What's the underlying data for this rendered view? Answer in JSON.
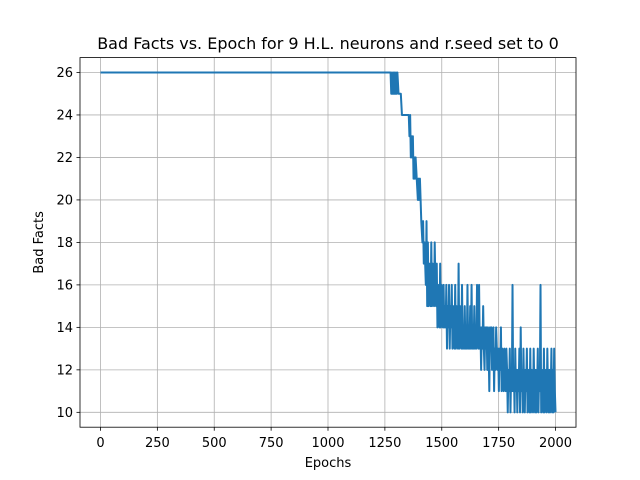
{
  "chart_data": {
    "type": "line",
    "title": "Bad Facts vs. Epoch for 9 H.L. neurons and r.seed set to 0",
    "xlabel": "Epochs",
    "ylabel": "Bad Facts",
    "xlim": [
      -90,
      2090
    ],
    "ylim": [
      9.3,
      26.7
    ],
    "xticks": [
      0,
      250,
      500,
      750,
      1000,
      1250,
      1500,
      1750,
      2000
    ],
    "yticks": [
      10,
      12,
      14,
      16,
      18,
      20,
      22,
      24,
      26
    ],
    "grid": true,
    "series": [
      {
        "color": "#1f77b4",
        "points": [
          [
            0,
            26
          ],
          [
            1275,
            26
          ],
          [
            1278,
            25
          ],
          [
            1281,
            26
          ],
          [
            1284,
            25
          ],
          [
            1287,
            26
          ],
          [
            1290,
            25
          ],
          [
            1293,
            26
          ],
          [
            1296,
            25
          ],
          [
            1299,
            26
          ],
          [
            1302,
            25
          ],
          [
            1305,
            26
          ],
          [
            1310,
            25
          ],
          [
            1320,
            25
          ],
          [
            1325,
            24
          ],
          [
            1355,
            24
          ],
          [
            1358,
            23
          ],
          [
            1361,
            24
          ],
          [
            1364,
            22
          ],
          [
            1367,
            23
          ],
          [
            1370,
            22
          ],
          [
            1373,
            23
          ],
          [
            1376,
            21
          ],
          [
            1379,
            22
          ],
          [
            1382,
            21
          ],
          [
            1385,
            22
          ],
          [
            1390,
            21
          ],
          [
            1395,
            20
          ],
          [
            1398,
            21
          ],
          [
            1401,
            20
          ],
          [
            1404,
            21
          ],
          [
            1407,
            20
          ],
          [
            1410,
            19
          ],
          [
            1415,
            18
          ],
          [
            1418,
            19
          ],
          [
            1421,
            17
          ],
          [
            1424,
            18
          ],
          [
            1427,
            17
          ],
          [
            1430,
            16
          ],
          [
            1433,
            19
          ],
          [
            1436,
            15
          ],
          [
            1439,
            18
          ],
          [
            1442,
            15
          ],
          [
            1445,
            17
          ],
          [
            1448,
            16
          ],
          [
            1451,
            15
          ],
          [
            1454,
            18
          ],
          [
            1457,
            15
          ],
          [
            1460,
            17
          ],
          [
            1463,
            16
          ],
          [
            1466,
            15
          ],
          [
            1469,
            18
          ],
          [
            1472,
            16
          ],
          [
            1475,
            15
          ],
          [
            1478,
            17
          ],
          [
            1481,
            14
          ],
          [
            1484,
            16
          ],
          [
            1487,
            15
          ],
          [
            1490,
            14
          ],
          [
            1493,
            17
          ],
          [
            1496,
            14
          ],
          [
            1499,
            16
          ],
          [
            1502,
            15
          ],
          [
            1505,
            14
          ],
          [
            1508,
            16
          ],
          [
            1511,
            14
          ],
          [
            1514,
            15
          ],
          [
            1517,
            14
          ],
          [
            1520,
            16
          ],
          [
            1523,
            13
          ],
          [
            1526,
            15
          ],
          [
            1529,
            14
          ],
          [
            1532,
            16
          ],
          [
            1535,
            13
          ],
          [
            1538,
            15
          ],
          [
            1541,
            14
          ],
          [
            1544,
            16
          ],
          [
            1547,
            13
          ],
          [
            1550,
            15
          ],
          [
            1553,
            14
          ],
          [
            1556,
            13
          ],
          [
            1559,
            16
          ],
          [
            1562,
            13
          ],
          [
            1565,
            15
          ],
          [
            1568,
            14
          ],
          [
            1571,
            13
          ],
          [
            1574,
            17
          ],
          [
            1577,
            13
          ],
          [
            1580,
            15
          ],
          [
            1583,
            14
          ],
          [
            1586,
            13
          ],
          [
            1589,
            16
          ],
          [
            1592,
            13
          ],
          [
            1595,
            14
          ],
          [
            1598,
            13
          ],
          [
            1601,
            15
          ],
          [
            1604,
            13
          ],
          [
            1607,
            14
          ],
          [
            1610,
            13
          ],
          [
            1613,
            16
          ],
          [
            1616,
            13
          ],
          [
            1619,
            14
          ],
          [
            1622,
            13
          ],
          [
            1625,
            15
          ],
          [
            1628,
            13
          ],
          [
            1631,
            16
          ],
          [
            1634,
            13
          ],
          [
            1637,
            14
          ],
          [
            1640,
            13
          ],
          [
            1643,
            15
          ],
          [
            1646,
            13
          ],
          [
            1649,
            14
          ],
          [
            1652,
            13
          ],
          [
            1655,
            16
          ],
          [
            1658,
            14
          ],
          [
            1661,
            13
          ],
          [
            1664,
            16
          ],
          [
            1667,
            13
          ],
          [
            1670,
            14
          ],
          [
            1673,
            12
          ],
          [
            1676,
            14
          ],
          [
            1679,
            13
          ],
          [
            1682,
            15
          ],
          [
            1685,
            13
          ],
          [
            1688,
            12
          ],
          [
            1691,
            14
          ],
          [
            1694,
            13
          ],
          [
            1697,
            14
          ],
          [
            1700,
            12
          ],
          [
            1703,
            14
          ],
          [
            1706,
            13
          ],
          [
            1709,
            11
          ],
          [
            1712,
            14
          ],
          [
            1715,
            13
          ],
          [
            1718,
            14
          ],
          [
            1721,
            12
          ],
          [
            1724,
            13
          ],
          [
            1727,
            14
          ],
          [
            1730,
            11
          ],
          [
            1733,
            13
          ],
          [
            1736,
            12
          ],
          [
            1739,
            14
          ],
          [
            1742,
            13
          ],
          [
            1745,
            12
          ],
          [
            1748,
            13
          ],
          [
            1751,
            11
          ],
          [
            1754,
            13
          ],
          [
            1757,
            12
          ],
          [
            1760,
            14
          ],
          [
            1763,
            11
          ],
          [
            1766,
            13
          ],
          [
            1769,
            12
          ],
          [
            1772,
            11
          ],
          [
            1775,
            13
          ],
          [
            1778,
            12
          ],
          [
            1781,
            11
          ],
          [
            1784,
            13
          ],
          [
            1787,
            12
          ],
          [
            1790,
            10
          ],
          [
            1793,
            12
          ],
          [
            1796,
            11
          ],
          [
            1799,
            13
          ],
          [
            1802,
            10
          ],
          [
            1805,
            12
          ],
          [
            1808,
            11
          ],
          [
            1811,
            16
          ],
          [
            1814,
            11
          ],
          [
            1817,
            12
          ],
          [
            1820,
            10
          ],
          [
            1823,
            13
          ],
          [
            1826,
            11
          ],
          [
            1829,
            12
          ],
          [
            1832,
            10
          ],
          [
            1835,
            12
          ],
          [
            1838,
            11
          ],
          [
            1841,
            13
          ],
          [
            1844,
            10
          ],
          [
            1847,
            14
          ],
          [
            1850,
            11
          ],
          [
            1853,
            12
          ],
          [
            1856,
            10
          ],
          [
            1859,
            13
          ],
          [
            1862,
            11
          ],
          [
            1865,
            10
          ],
          [
            1868,
            12
          ],
          [
            1871,
            11
          ],
          [
            1874,
            13
          ],
          [
            1877,
            10
          ],
          [
            1880,
            12
          ],
          [
            1883,
            11
          ],
          [
            1886,
            10
          ],
          [
            1889,
            13
          ],
          [
            1892,
            10
          ],
          [
            1895,
            12
          ],
          [
            1898,
            11
          ],
          [
            1901,
            10
          ],
          [
            1904,
            13
          ],
          [
            1907,
            11
          ],
          [
            1910,
            10
          ],
          [
            1913,
            12
          ],
          [
            1916,
            10
          ],
          [
            1919,
            11
          ],
          [
            1922,
            13
          ],
          [
            1925,
            10
          ],
          [
            1928,
            12
          ],
          [
            1931,
            11
          ],
          [
            1934,
            16
          ],
          [
            1937,
            10
          ],
          [
            1940,
            12
          ],
          [
            1943,
            11
          ],
          [
            1946,
            10
          ],
          [
            1949,
            13
          ],
          [
            1952,
            10
          ],
          [
            1955,
            11
          ],
          [
            1958,
            12
          ],
          [
            1961,
            10
          ],
          [
            1964,
            13
          ],
          [
            1967,
            11
          ],
          [
            1970,
            10
          ],
          [
            1973,
            12
          ],
          [
            1976,
            10
          ],
          [
            1979,
            11
          ],
          [
            1982,
            13
          ],
          [
            1985,
            10
          ],
          [
            1988,
            12
          ],
          [
            1991,
            10
          ],
          [
            1994,
            13
          ],
          [
            1997,
            11
          ],
          [
            2000,
            10
          ]
        ]
      }
    ]
  }
}
